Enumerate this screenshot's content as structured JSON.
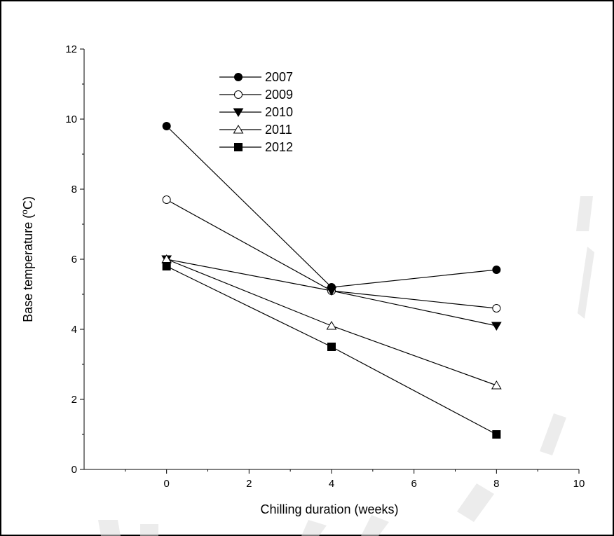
{
  "chart_data": {
    "type": "line",
    "xlabel": "Chilling duration (weeks)",
    "ylabel_main": "Base temperature (",
    "ylabel_sup": "o",
    "ylabel_end": "C)",
    "xlim": [
      -2,
      10
    ],
    "ylim": [
      0,
      12
    ],
    "x_ticks": [
      0,
      2,
      4,
      6,
      8,
      10
    ],
    "y_ticks": [
      0,
      2,
      4,
      6,
      8,
      10,
      12
    ],
    "x_tick_labels": [
      "0",
      "2",
      "4",
      "6",
      "8",
      "10"
    ],
    "y_tick_labels": [
      "0",
      "2",
      "4",
      "6",
      "8",
      "10",
      "12"
    ],
    "grid": false,
    "legend_position": "top-left",
    "series": [
      {
        "name": "2007",
        "marker": "filled-circle",
        "x": [
          0,
          4,
          8
        ],
        "y": [
          9.8,
          5.2,
          5.7
        ]
      },
      {
        "name": "2009",
        "marker": "open-circle",
        "x": [
          0,
          4,
          8
        ],
        "y": [
          7.7,
          5.1,
          4.6
        ]
      },
      {
        "name": "2010",
        "marker": "filled-triangle-down",
        "x": [
          0,
          4,
          8
        ],
        "y": [
          6.0,
          5.1,
          4.1
        ]
      },
      {
        "name": "2011",
        "marker": "open-triangle-up",
        "x": [
          0,
          4,
          8
        ],
        "y": [
          6.0,
          4.1,
          2.4
        ]
      },
      {
        "name": "2012",
        "marker": "filled-square",
        "x": [
          0,
          4,
          8
        ],
        "y": [
          5.8,
          3.5,
          1.0
        ]
      }
    ]
  }
}
